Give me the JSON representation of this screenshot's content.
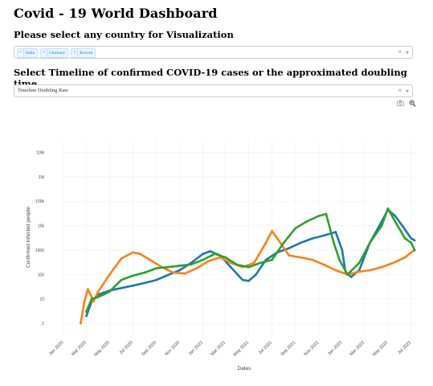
{
  "page": {
    "title": "Covid - 19 World Dashboard",
    "country_prompt": "Please select any country for Visualization",
    "timeline_prompt": "Select Timeline of confirmed COVID-19 cases or the approximated doubling time"
  },
  "country_select": {
    "selected": [
      "India",
      "Germany",
      "Kuwait"
    ],
    "remove_glyph": "×",
    "clear_glyph": "×"
  },
  "timeline_select": {
    "value": "Timeline Doubling Rate",
    "clear_glyph": "×"
  },
  "modebar": {
    "icons": [
      "camera-icon",
      "zoom-icon"
    ]
  },
  "colors": {
    "india": "#1f77b4",
    "germany": "#ff7f0e",
    "kuwait": "#2ca02c",
    "grid": "#eeeeee"
  },
  "chart_data": {
    "type": "line",
    "xlabel": "Dates",
    "ylabel": "Confirmed infected people",
    "y_scale": "log",
    "ylim": [
      0.3,
      30000000
    ],
    "x_ticks": [
      "Jan 2020",
      "Mar 2020",
      "May 2020",
      "Jul 2020",
      "Sep 2020",
      "Nov 2020",
      "Jan 2021",
      "Mar 2021",
      "May 2021",
      "Jul 2021",
      "Sep 2021",
      "Nov 2021",
      "Jan 2022",
      "Mar 2022",
      "May 2022",
      "Jul 2022"
    ],
    "y_ticks": [
      "1",
      "10",
      "100",
      "1000",
      "10k",
      "100k",
      "1M",
      "10M"
    ],
    "grid": true,
    "series": [
      {
        "name": "India",
        "color": "#1f77b4",
        "points": [
          [
            "2020-03-01",
            2
          ],
          [
            "2020-03-15",
            8
          ],
          [
            "2020-04-01",
            15
          ],
          [
            "2020-04-15",
            18
          ],
          [
            "2020-05-01",
            22
          ],
          [
            "2020-06-01",
            28
          ],
          [
            "2020-07-01",
            35
          ],
          [
            "2020-08-01",
            45
          ],
          [
            "2020-09-01",
            60
          ],
          [
            "2020-10-01",
            95
          ],
          [
            "2020-11-01",
            150
          ],
          [
            "2020-12-01",
            300
          ],
          [
            "2021-01-01",
            700
          ],
          [
            "2021-01-20",
            900
          ],
          [
            "2021-02-15",
            600
          ],
          [
            "2021-03-15",
            200
          ],
          [
            "2021-04-15",
            60
          ],
          [
            "2021-05-01",
            55
          ],
          [
            "2021-05-20",
            100
          ],
          [
            "2021-06-15",
            400
          ],
          [
            "2021-07-15",
            800
          ],
          [
            "2021-08-15",
            1200
          ],
          [
            "2021-09-15",
            2000
          ],
          [
            "2021-10-15",
            3000
          ],
          [
            "2021-11-15",
            4000
          ],
          [
            "2021-12-15",
            5500
          ],
          [
            "2022-01-01",
            1000
          ],
          [
            "2022-01-10",
            120
          ],
          [
            "2022-01-25",
            80
          ],
          [
            "2022-02-15",
            150
          ],
          [
            "2022-03-15",
            2000
          ],
          [
            "2022-04-15",
            15000
          ],
          [
            "2022-05-01",
            45000
          ],
          [
            "2022-05-20",
            25000
          ],
          [
            "2022-06-10",
            9000
          ],
          [
            "2022-07-01",
            3000
          ],
          [
            "2022-07-10",
            2500
          ]
        ]
      },
      {
        "name": "Germany",
        "color": "#ff7f0e",
        "points": [
          [
            "2020-02-15",
            1
          ],
          [
            "2020-02-25",
            8
          ],
          [
            "2020-03-05",
            25
          ],
          [
            "2020-03-20",
            8
          ],
          [
            "2020-04-01",
            20
          ],
          [
            "2020-05-01",
            100
          ],
          [
            "2020-06-01",
            450
          ],
          [
            "2020-07-01",
            800
          ],
          [
            "2020-07-20",
            700
          ],
          [
            "2020-08-15",
            400
          ],
          [
            "2020-09-15",
            200
          ],
          [
            "2020-10-15",
            120
          ],
          [
            "2020-11-15",
            110
          ],
          [
            "2020-12-15",
            180
          ],
          [
            "2021-01-15",
            350
          ],
          [
            "2021-02-15",
            500
          ],
          [
            "2021-03-15",
            300
          ],
          [
            "2021-04-15",
            200
          ],
          [
            "2021-05-15",
            300
          ],
          [
            "2021-06-15",
            2000
          ],
          [
            "2021-07-01",
            6000
          ],
          [
            "2021-07-15",
            3000
          ],
          [
            "2021-08-15",
            600
          ],
          [
            "2021-09-15",
            500
          ],
          [
            "2021-10-15",
            400
          ],
          [
            "2021-11-15",
            250
          ],
          [
            "2021-12-15",
            150
          ],
          [
            "2022-01-15",
            100
          ],
          [
            "2022-02-15",
            130
          ],
          [
            "2022-03-15",
            150
          ],
          [
            "2022-04-15",
            200
          ],
          [
            "2022-05-15",
            300
          ],
          [
            "2022-06-15",
            500
          ],
          [
            "2022-07-01",
            800
          ],
          [
            "2022-07-10",
            1000
          ]
        ]
      },
      {
        "name": "Kuwait",
        "color": "#2ca02c",
        "points": [
          [
            "2020-03-01",
            3
          ],
          [
            "2020-03-15",
            10
          ],
          [
            "2020-04-01",
            12
          ],
          [
            "2020-04-15",
            15
          ],
          [
            "2020-05-01",
            20
          ],
          [
            "2020-06-01",
            60
          ],
          [
            "2020-07-01",
            90
          ],
          [
            "2020-08-01",
            120
          ],
          [
            "2020-09-01",
            180
          ],
          [
            "2020-10-01",
            200
          ],
          [
            "2020-11-01",
            230
          ],
          [
            "2020-12-01",
            260
          ],
          [
            "2021-01-01",
            400
          ],
          [
            "2021-02-01",
            700
          ],
          [
            "2021-03-01",
            500
          ],
          [
            "2021-04-01",
            250
          ],
          [
            "2021-05-01",
            200
          ],
          [
            "2021-06-01",
            300
          ],
          [
            "2021-07-01",
            400
          ],
          [
            "2021-08-01",
            2000
          ],
          [
            "2021-09-01",
            8000
          ],
          [
            "2021-10-01",
            15000
          ],
          [
            "2021-11-01",
            25000
          ],
          [
            "2021-11-20",
            30000
          ],
          [
            "2021-12-10",
            2000
          ],
          [
            "2021-12-25",
            400
          ],
          [
            "2022-01-15",
            100
          ],
          [
            "2022-02-15",
            300
          ],
          [
            "2022-03-15",
            2000
          ],
          [
            "2022-04-15",
            10000
          ],
          [
            "2022-05-01",
            50000
          ],
          [
            "2022-05-20",
            15000
          ],
          [
            "2022-06-15",
            3000
          ],
          [
            "2022-07-01",
            2000
          ],
          [
            "2022-07-10",
            1000
          ]
        ]
      }
    ]
  }
}
